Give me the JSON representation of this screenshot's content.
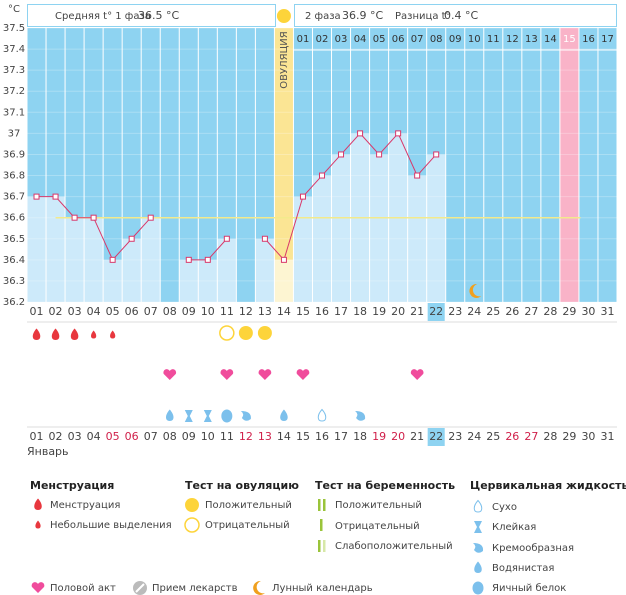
{
  "header": {
    "phase1_label": "Средняя t° 1 фаза",
    "phase1_value": "36.5 °C",
    "phase2_label": "2 фаза",
    "phase2_value": "36.9 °C",
    "diff_label": "Разница t°",
    "diff_value": "0.4 °C"
  },
  "chart_data": {
    "type": "line",
    "y_unit": "°C",
    "ovulation_label": "ОВУЛЯЦИЯ",
    "month": "Январь",
    "categories": [
      "01",
      "02",
      "03",
      "04",
      "05",
      "06",
      "07",
      "08",
      "09",
      "10",
      "11",
      "12",
      "13",
      "14",
      "15",
      "16",
      "17",
      "18",
      "19",
      "20",
      "21",
      "22",
      "23",
      "24",
      "25",
      "26",
      "27",
      "28",
      "29",
      "30",
      "31"
    ],
    "phase2_days": [
      "01",
      "02",
      "03",
      "04",
      "05",
      "06",
      "07",
      "08",
      "09",
      "10",
      "11",
      "12",
      "13",
      "14",
      "15",
      "16",
      "17"
    ],
    "values": [
      36.7,
      36.7,
      36.6,
      36.6,
      36.4,
      36.5,
      36.6,
      null,
      36.4,
      36.4,
      36.5,
      null,
      36.5,
      36.4,
      36.7,
      36.8,
      36.9,
      37.0,
      36.9,
      37.0,
      36.8,
      36.9,
      null,
      null,
      null,
      null,
      null,
      null,
      null,
      null,
      null
    ],
    "color": "#d9386a",
    "bar_color": "#cdeafa",
    "background_color": "#8ed3f1",
    "coverline": 36.6,
    "coverline_color": "#f3ea8c",
    "ylim": [
      36.2,
      37.5
    ],
    "yticks": [
      37.5,
      37.4,
      37.3,
      37.2,
      37.1,
      37,
      36.9,
      36.8,
      36.7,
      36.6,
      36.5,
      36.4,
      36.3,
      36.2
    ],
    "grid": true
  },
  "legend": {
    "menstruation": {
      "title": "Менструация",
      "items": [
        "Менструация",
        "Небольшие выделения"
      ]
    },
    "ovulation_test": {
      "title": "Тест на овуляцию",
      "items": [
        "Положительный",
        "Отрицательный"
      ]
    },
    "pregnancy_test": {
      "title": "Тест на беременность",
      "items": [
        "Положительный",
        "Отрицательный",
        "Слабоположительный"
      ]
    },
    "cervical_fluid": {
      "title": "Цервикальная жидкость",
      "items": [
        "Сухо",
        "Клейкая",
        "Кремообразная",
        "Водянистая",
        "Яичный белок"
      ]
    },
    "other": [
      "Половой акт",
      "Прием лекарств",
      "Лунный календарь"
    ]
  }
}
